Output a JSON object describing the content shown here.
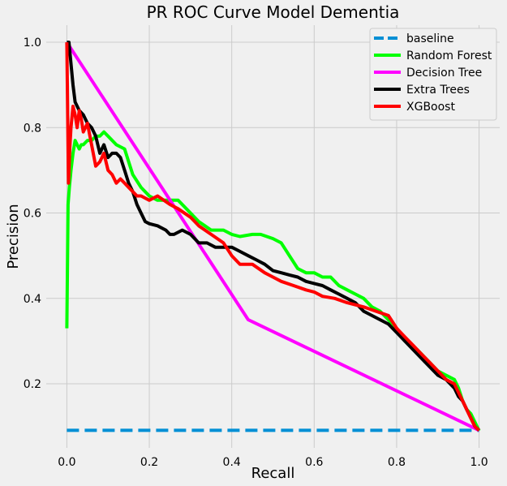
{
  "chart_data": {
    "type": "line",
    "title": "PR ROC Curve Model Dementia",
    "xlabel": "Recall",
    "ylabel": "Precision",
    "xlim": [
      -0.05,
      1.05
    ],
    "ylim": [
      0.05,
      1.04
    ],
    "xticks": [
      0.0,
      0.2,
      0.4,
      0.6,
      0.8,
      1.0
    ],
    "yticks": [
      0.2,
      0.4,
      0.6,
      0.8,
      1.0
    ],
    "xtick_labels": [
      "0.0",
      "0.2",
      "0.4",
      "0.6",
      "0.8",
      "1.0"
    ],
    "ytick_labels": [
      "0.2",
      "0.4",
      "0.6",
      "0.8",
      "1.0"
    ],
    "grid": true,
    "legend_position": "top-right",
    "series": [
      {
        "name": "baseline",
        "color": "#008fd5",
        "dash": true,
        "x": [
          0.0,
          1.0
        ],
        "y": [
          0.091,
          0.091
        ]
      },
      {
        "name": "Random Forest",
        "color": "#00ff00",
        "x": [
          0.0,
          0.003,
          0.006,
          0.01,
          0.015,
          0.02,
          0.025,
          0.03,
          0.035,
          0.04,
          0.05,
          0.06,
          0.07,
          0.08,
          0.09,
          0.1,
          0.12,
          0.14,
          0.15,
          0.16,
          0.18,
          0.2,
          0.22,
          0.25,
          0.27,
          0.3,
          0.32,
          0.35,
          0.38,
          0.4,
          0.42,
          0.45,
          0.47,
          0.5,
          0.52,
          0.54,
          0.56,
          0.58,
          0.6,
          0.62,
          0.64,
          0.66,
          0.68,
          0.7,
          0.72,
          0.74,
          0.76,
          0.78,
          0.8,
          0.82,
          0.85,
          0.88,
          0.9,
          0.92,
          0.94,
          0.95,
          0.96,
          0.97,
          0.98,
          0.99,
          1.0
        ],
        "y": [
          0.33,
          0.62,
          0.66,
          0.7,
          0.74,
          0.77,
          0.76,
          0.75,
          0.76,
          0.76,
          0.77,
          0.77,
          0.78,
          0.78,
          0.79,
          0.78,
          0.76,
          0.75,
          0.72,
          0.69,
          0.66,
          0.64,
          0.63,
          0.63,
          0.63,
          0.6,
          0.58,
          0.56,
          0.56,
          0.55,
          0.545,
          0.55,
          0.55,
          0.54,
          0.53,
          0.5,
          0.47,
          0.46,
          0.46,
          0.45,
          0.45,
          0.43,
          0.42,
          0.41,
          0.4,
          0.38,
          0.37,
          0.35,
          0.33,
          0.3,
          0.28,
          0.25,
          0.23,
          0.22,
          0.21,
          0.19,
          0.16,
          0.14,
          0.13,
          0.11,
          0.09
        ]
      },
      {
        "name": "Decision Tree",
        "color": "#ff00ff",
        "x": [
          0.0,
          0.44,
          1.0
        ],
        "y": [
          1.0,
          0.35,
          0.091
        ]
      },
      {
        "name": "Extra Trees",
        "color": "#000000",
        "x": [
          0.0,
          0.005,
          0.01,
          0.015,
          0.02,
          0.03,
          0.04,
          0.05,
          0.06,
          0.07,
          0.08,
          0.09,
          0.1,
          0.11,
          0.12,
          0.13,
          0.14,
          0.15,
          0.16,
          0.17,
          0.18,
          0.19,
          0.2,
          0.22,
          0.24,
          0.25,
          0.26,
          0.28,
          0.3,
          0.32,
          0.34,
          0.36,
          0.38,
          0.4,
          0.42,
          0.44,
          0.46,
          0.48,
          0.5,
          0.52,
          0.54,
          0.56,
          0.58,
          0.6,
          0.62,
          0.64,
          0.66,
          0.68,
          0.7,
          0.72,
          0.74,
          0.76,
          0.78,
          0.8,
          0.82,
          0.84,
          0.86,
          0.88,
          0.9,
          0.92,
          0.94,
          0.95,
          0.96,
          0.97,
          0.98,
          0.99,
          1.0
        ],
        "y": [
          1.0,
          1.0,
          0.95,
          0.9,
          0.86,
          0.84,
          0.83,
          0.81,
          0.8,
          0.78,
          0.74,
          0.76,
          0.73,
          0.74,
          0.74,
          0.73,
          0.7,
          0.67,
          0.65,
          0.62,
          0.6,
          0.58,
          0.575,
          0.57,
          0.56,
          0.55,
          0.55,
          0.56,
          0.55,
          0.53,
          0.53,
          0.52,
          0.52,
          0.52,
          0.51,
          0.5,
          0.49,
          0.48,
          0.465,
          0.46,
          0.455,
          0.45,
          0.44,
          0.435,
          0.43,
          0.42,
          0.41,
          0.4,
          0.39,
          0.37,
          0.36,
          0.35,
          0.34,
          0.32,
          0.3,
          0.28,
          0.26,
          0.24,
          0.22,
          0.21,
          0.19,
          0.17,
          0.16,
          0.14,
          0.12,
          0.1,
          0.091
        ]
      },
      {
        "name": "XGBoost",
        "color": "#ff0000",
        "x": [
          0.0,
          0.004,
          0.007,
          0.01,
          0.015,
          0.02,
          0.025,
          0.03,
          0.035,
          0.04,
          0.05,
          0.06,
          0.07,
          0.08,
          0.09,
          0.1,
          0.11,
          0.12,
          0.13,
          0.14,
          0.15,
          0.16,
          0.17,
          0.18,
          0.2,
          0.22,
          0.25,
          0.27,
          0.3,
          0.32,
          0.35,
          0.38,
          0.4,
          0.42,
          0.45,
          0.48,
          0.5,
          0.52,
          0.55,
          0.58,
          0.6,
          0.62,
          0.65,
          0.68,
          0.7,
          0.72,
          0.75,
          0.78,
          0.8,
          0.82,
          0.84,
          0.86,
          0.88,
          0.9,
          0.92,
          0.94,
          0.95,
          0.96,
          0.97,
          0.98,
          0.99,
          1.0
        ],
        "y": [
          1.0,
          0.67,
          0.75,
          0.8,
          0.85,
          0.83,
          0.8,
          0.84,
          0.82,
          0.79,
          0.81,
          0.76,
          0.71,
          0.72,
          0.74,
          0.7,
          0.69,
          0.67,
          0.68,
          0.67,
          0.66,
          0.65,
          0.64,
          0.64,
          0.63,
          0.64,
          0.62,
          0.61,
          0.59,
          0.57,
          0.55,
          0.53,
          0.5,
          0.48,
          0.48,
          0.46,
          0.45,
          0.44,
          0.43,
          0.42,
          0.415,
          0.405,
          0.4,
          0.39,
          0.385,
          0.38,
          0.37,
          0.36,
          0.33,
          0.31,
          0.29,
          0.27,
          0.25,
          0.23,
          0.21,
          0.2,
          0.18,
          0.16,
          0.14,
          0.12,
          0.1,
          0.091
        ]
      }
    ]
  }
}
